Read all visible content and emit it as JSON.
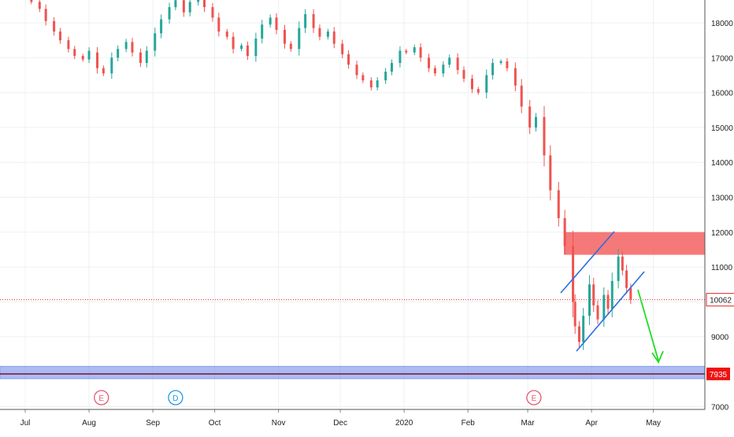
{
  "chart_data": {
    "type": "candlestick",
    "title": "",
    "xlabel": "",
    "ylabel": "",
    "ylim": [
      6750,
      18750
    ],
    "y_ticks": [
      7000,
      8000,
      9000,
      10000,
      11000,
      12000,
      13000,
      14000,
      15000,
      16000,
      17000,
      18000
    ],
    "x_ticks": [
      {
        "label": "Jul",
        "date": "2019-07-01"
      },
      {
        "label": "Aug",
        "date": "2019-08-01"
      },
      {
        "label": "Sep",
        "date": "2019-09-01"
      },
      {
        "label": "Oct",
        "date": "2019-10-01"
      },
      {
        "label": "Nov",
        "date": "2019-11-01"
      },
      {
        "label": "Dec",
        "date": "2019-12-01"
      },
      {
        "label": "2020",
        "date": "2020-01-01"
      },
      {
        "label": "Feb",
        "date": "2020-02-01"
      },
      {
        "label": "Mar",
        "date": "2020-03-01"
      },
      {
        "label": "Apr",
        "date": "2020-04-01"
      },
      {
        "label": "May",
        "date": "2020-05-01"
      }
    ],
    "grid": true,
    "current_price": {
      "value": 10062,
      "label": "10062"
    },
    "support_price": {
      "value": 7935,
      "label": "7935"
    },
    "series": [
      {
        "points": [
          [
            "2019-06-20",
            18950,
            18810
          ],
          [
            "2019-06-27",
            18800,
            18720
          ],
          [
            "2019-07-04",
            18700,
            18600
          ],
          [
            "2019-07-08",
            18600,
            18400
          ],
          [
            "2019-07-11",
            18400,
            18050
          ],
          [
            "2019-07-15",
            18050,
            17750
          ],
          [
            "2019-07-18",
            17750,
            17500
          ],
          [
            "2019-07-22",
            17500,
            17250
          ],
          [
            "2019-07-25",
            17250,
            17050
          ],
          [
            "2019-07-29",
            17050,
            16950
          ],
          [
            "2019-08-01",
            16950,
            17200
          ],
          [
            "2019-08-05",
            17150,
            16700
          ],
          [
            "2019-08-08",
            16700,
            16550
          ],
          [
            "2019-08-12",
            16550,
            17000
          ],
          [
            "2019-08-15",
            17000,
            17250
          ],
          [
            "2019-08-19",
            17250,
            17450
          ],
          [
            "2019-08-22",
            17450,
            17150
          ],
          [
            "2019-08-26",
            17150,
            16850
          ],
          [
            "2019-08-29",
            16850,
            17200
          ],
          [
            "2019-09-02",
            17200,
            17700
          ],
          [
            "2019-09-05",
            17700,
            18100
          ],
          [
            "2019-09-09",
            18100,
            18450
          ],
          [
            "2019-09-12",
            18450,
            18650
          ],
          [
            "2019-09-16",
            18650,
            18300
          ],
          [
            "2019-09-19",
            18300,
            18600
          ],
          [
            "2019-09-23",
            18600,
            18850
          ],
          [
            "2019-09-26",
            18850,
            18450
          ],
          [
            "2019-09-30",
            18450,
            18150
          ],
          [
            "2019-10-03",
            18150,
            17750
          ],
          [
            "2019-10-07",
            17750,
            17600
          ],
          [
            "2019-10-10",
            17600,
            17250
          ],
          [
            "2019-10-14",
            17250,
            17350
          ],
          [
            "2019-10-17",
            17350,
            17050
          ],
          [
            "2019-10-21",
            17050,
            17550
          ],
          [
            "2019-10-24",
            17550,
            17950
          ],
          [
            "2019-10-28",
            17950,
            18150
          ],
          [
            "2019-10-31",
            18150,
            17800
          ],
          [
            "2019-11-04",
            17800,
            17400
          ],
          [
            "2019-11-07",
            17400,
            17250
          ],
          [
            "2019-11-11",
            17250,
            17850
          ],
          [
            "2019-11-14",
            17850,
            18250
          ],
          [
            "2019-11-18",
            18250,
            17850
          ],
          [
            "2019-11-21",
            17850,
            17600
          ],
          [
            "2019-11-25",
            17600,
            17750
          ],
          [
            "2019-11-28",
            17750,
            17400
          ],
          [
            "2019-12-02",
            17400,
            17100
          ],
          [
            "2019-12-05",
            17100,
            16800
          ],
          [
            "2019-12-09",
            16800,
            16500
          ],
          [
            "2019-12-12",
            16500,
            16350
          ],
          [
            "2019-12-16",
            16350,
            16150
          ],
          [
            "2019-12-19",
            16150,
            16350
          ],
          [
            "2019-12-23",
            16350,
            16600
          ],
          [
            "2019-12-26",
            16600,
            16850
          ],
          [
            "2019-12-30",
            16850,
            17200
          ],
          [
            "2020-01-02",
            17200,
            17150
          ],
          [
            "2020-01-06",
            17150,
            17300
          ],
          [
            "2020-01-09",
            17300,
            17000
          ],
          [
            "2020-01-13",
            17000,
            16700
          ],
          [
            "2020-01-16",
            16700,
            16550
          ],
          [
            "2020-01-20",
            16550,
            16800
          ],
          [
            "2020-01-23",
            16800,
            17000
          ],
          [
            "2020-01-27",
            17000,
            16650
          ],
          [
            "2020-01-30",
            16650,
            16400
          ],
          [
            "2020-02-03",
            16400,
            16100
          ],
          [
            "2020-02-06",
            16100,
            16000
          ],
          [
            "2020-02-10",
            16000,
            16500
          ],
          [
            "2020-02-13",
            16500,
            16850
          ],
          [
            "2020-02-17",
            16850,
            16900
          ],
          [
            "2020-02-20",
            16900,
            16700
          ],
          [
            "2020-02-24",
            16700,
            16200
          ],
          [
            "2020-02-27",
            16200,
            15600
          ],
          [
            "2020-03-02",
            15600,
            15000
          ],
          [
            "2020-03-05",
            15000,
            15300
          ],
          [
            "2020-03-09",
            15300,
            14200
          ],
          [
            "2020-03-12",
            14200,
            13200
          ],
          [
            "2020-03-16",
            13200,
            12400
          ],
          [
            "2020-03-19",
            12400,
            11600
          ],
          [
            "2020-03-23",
            11600,
            10000
          ],
          [
            "2020-03-24",
            10000,
            9300
          ],
          [
            "2020-03-26",
            9300,
            8850
          ],
          [
            "2020-03-28",
            8850,
            9600
          ],
          [
            "2020-03-31",
            9600,
            10500
          ],
          [
            "2020-04-02",
            10500,
            9900
          ],
          [
            "2020-04-04",
            9900,
            9500
          ],
          [
            "2020-04-07",
            9500,
            10200
          ],
          [
            "2020-04-09",
            10200,
            9800
          ],
          [
            "2020-04-11",
            9800,
            10600
          ],
          [
            "2020-04-14",
            10600,
            11300
          ],
          [
            "2020-04-16",
            11300,
            10900
          ],
          [
            "2020-04-18",
            10900,
            10400
          ],
          [
            "2020-04-20",
            10400,
            10062
          ]
        ]
      }
    ]
  },
  "annotations": {
    "resistance_zone": {
      "from": 11350,
      "to": 12000,
      "color": "#f56262"
    },
    "support_band": {
      "from": 7800,
      "to": 8150,
      "color": "#5b7be8"
    },
    "channel_color": "#2a6fe0",
    "projection_arrow_color": "#22dd22",
    "up_color": "#26a69a",
    "down_color": "#ef5350",
    "price_line_color": "#ee2222",
    "support_label_bg": "#ee1111"
  },
  "event_markers": [
    {
      "label": "E",
      "date": "2019-08-07",
      "color": "#e35b73"
    },
    {
      "label": "D",
      "date": "2019-09-12",
      "color": "#1f9be6"
    },
    {
      "label": "E",
      "date": "2020-03-04",
      "color": "#e35b73"
    }
  ]
}
